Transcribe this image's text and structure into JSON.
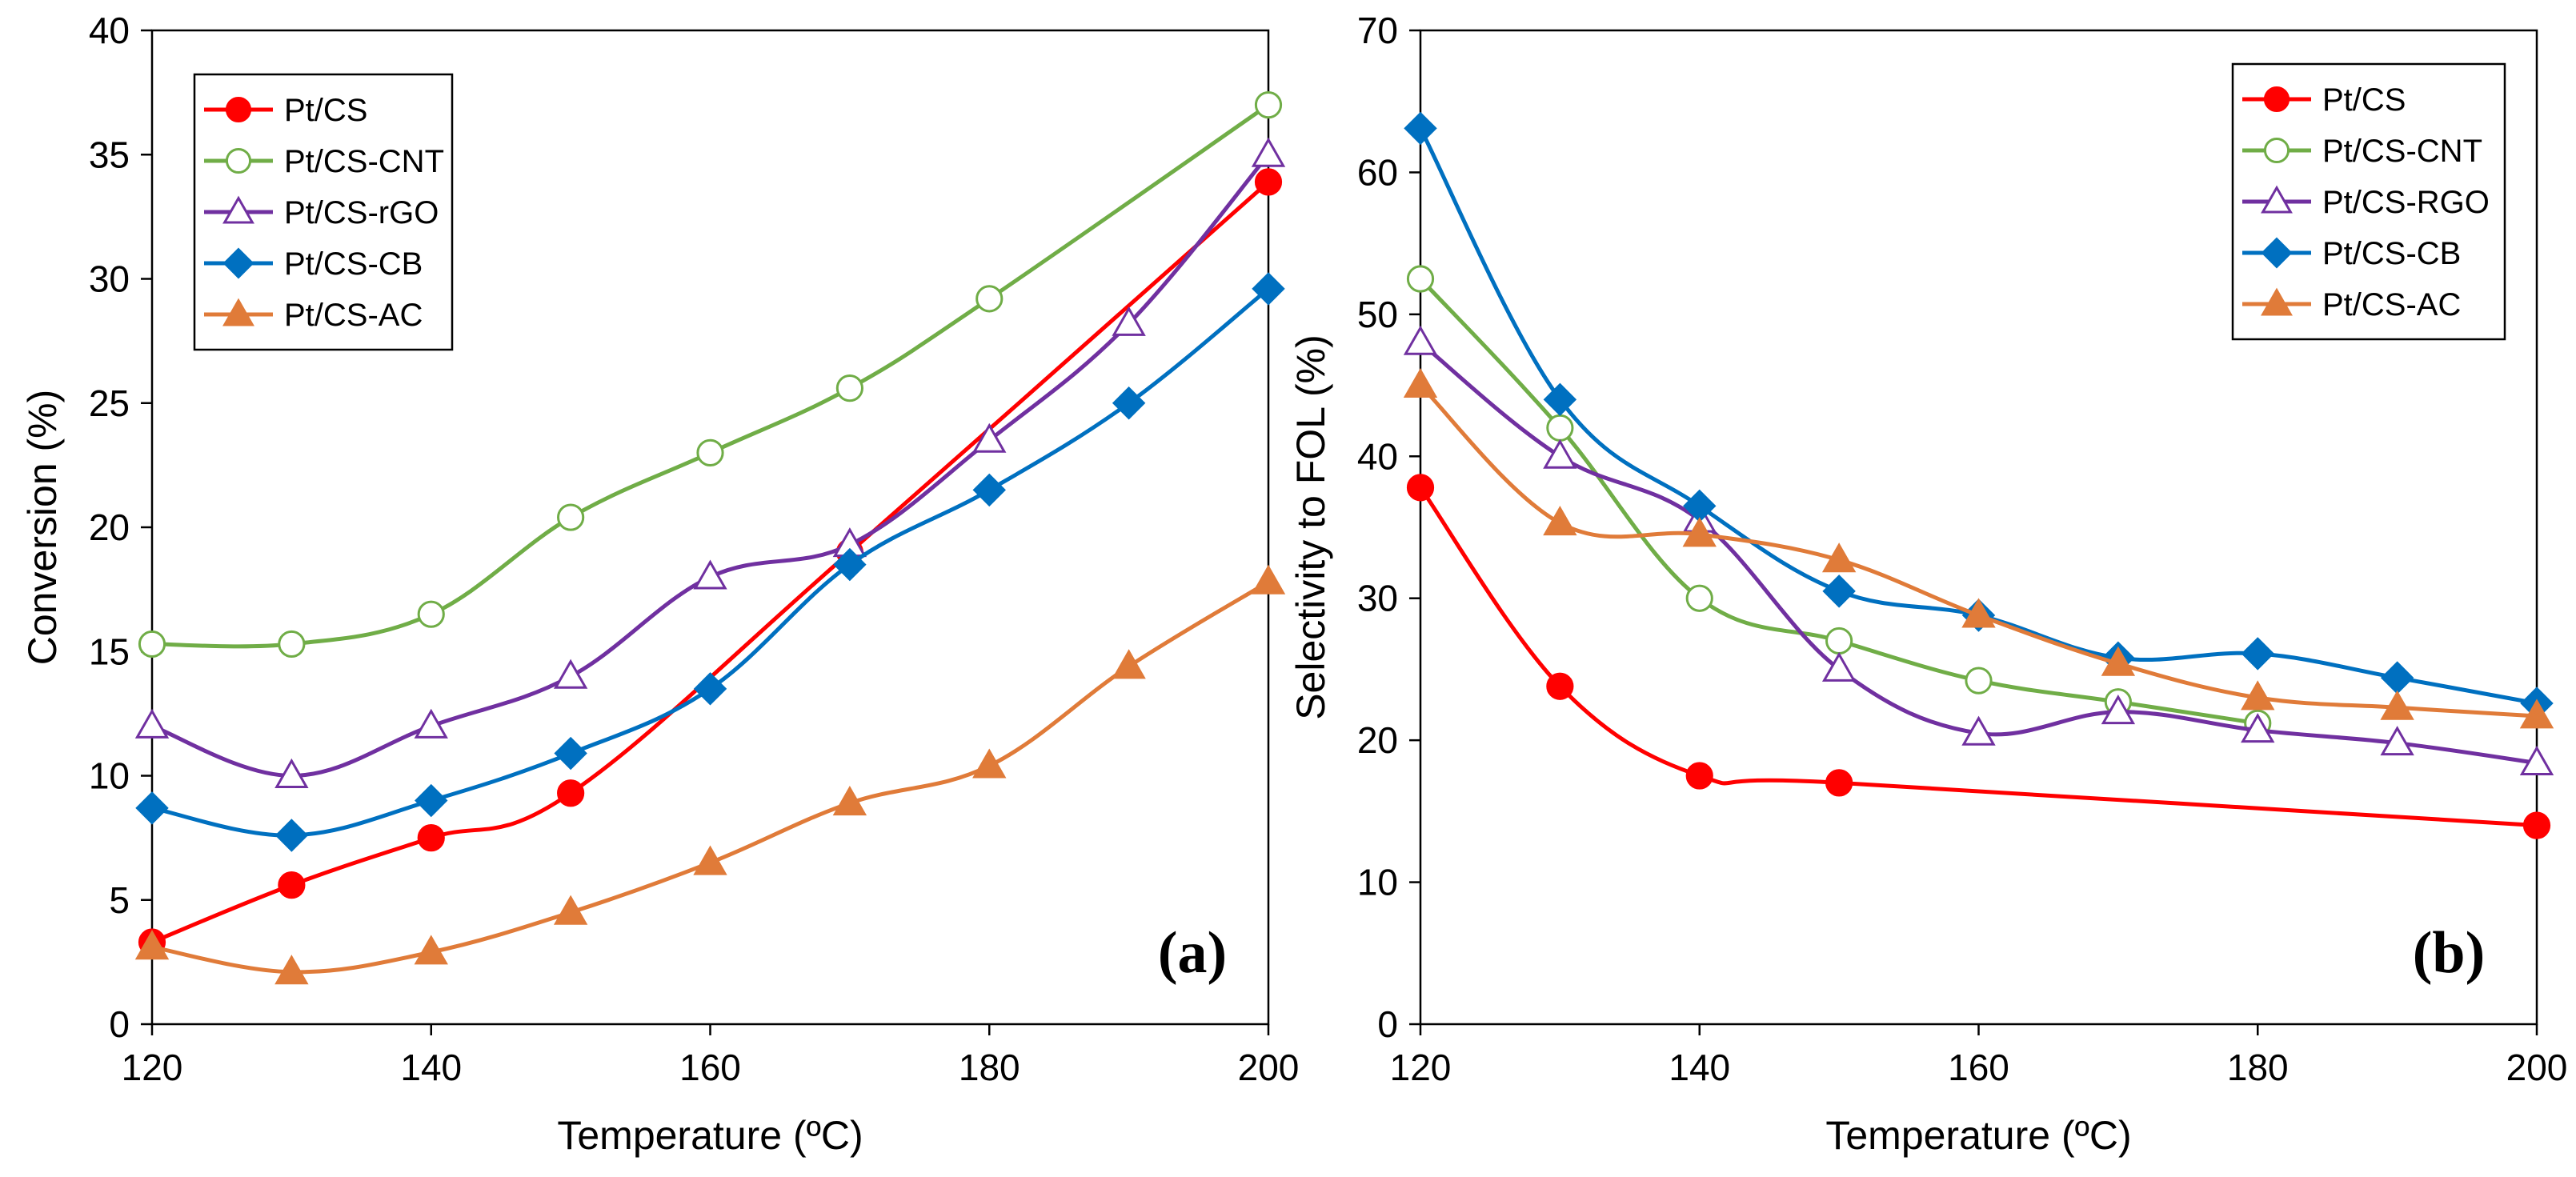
{
  "chart_data": [
    {
      "type": "line",
      "panel_label": "(a)",
      "xlabel": "Temperature (ºC)",
      "ylabel": "Conversion (%)",
      "xlim": [
        120,
        200
      ],
      "ylim": [
        0,
        40
      ],
      "xticks": [
        120,
        140,
        160,
        180,
        200
      ],
      "yticks": [
        0,
        5,
        10,
        15,
        20,
        25,
        30,
        35,
        40
      ],
      "grid": false,
      "legend_position": "top-left",
      "series": [
        {
          "name": "Pt/CS",
          "color": "#ff0000",
          "marker": "circle",
          "filled": true,
          "x": [
            120,
            130,
            140,
            150,
            170,
            200
          ],
          "y": [
            3.3,
            5.6,
            7.5,
            9.3,
            19.0,
            33.9
          ]
        },
        {
          "name": "Pt/CS-CNT",
          "color": "#70ad47",
          "marker": "circle",
          "filled": false,
          "x": [
            120,
            130,
            140,
            150,
            160,
            170,
            180,
            200
          ],
          "y": [
            15.3,
            15.3,
            16.5,
            20.4,
            23.0,
            25.6,
            29.2,
            37.0
          ]
        },
        {
          "name": "Pt/CS-rGO",
          "color": "#7030a0",
          "marker": "triangle",
          "filled": false,
          "x": [
            120,
            130,
            140,
            150,
            160,
            170,
            180,
            190,
            200
          ],
          "y": [
            12.0,
            10.0,
            12.0,
            14.0,
            18.0,
            19.3,
            23.5,
            28.2,
            35.0
          ]
        },
        {
          "name": "Pt/CS-CB",
          "color": "#0070c0",
          "marker": "diamond",
          "filled": true,
          "x": [
            120,
            130,
            140,
            150,
            160,
            170,
            180,
            190,
            200
          ],
          "y": [
            8.7,
            7.6,
            9.0,
            10.9,
            13.5,
            18.5,
            21.5,
            25.0,
            29.6
          ]
        },
        {
          "name": "Pt/CS-AC",
          "color": "#e07b39",
          "marker": "triangle",
          "filled": true,
          "x": [
            120,
            130,
            140,
            150,
            160,
            170,
            180,
            190,
            200
          ],
          "y": [
            3.1,
            2.1,
            2.9,
            4.5,
            6.5,
            8.9,
            10.4,
            14.4,
            17.8
          ]
        }
      ]
    },
    {
      "type": "line",
      "panel_label": "(b)",
      "xlabel": "Temperature (ºC)",
      "ylabel": "Selectivity to FOL (%)",
      "xlim": [
        120,
        200
      ],
      "ylim": [
        0,
        70
      ],
      "xticks": [
        120,
        140,
        160,
        180,
        200
      ],
      "yticks": [
        0,
        10,
        20,
        30,
        40,
        50,
        60,
        70
      ],
      "grid": false,
      "legend_position": "top-right",
      "series": [
        {
          "name": "Pt/CS",
          "color": "#ff0000",
          "marker": "circle",
          "filled": true,
          "x": [
            120,
            130,
            140,
            150,
            200
          ],
          "y": [
            37.8,
            23.8,
            17.5,
            17.0,
            14.0
          ]
        },
        {
          "name": "Pt/CS-CNT",
          "color": "#70ad47",
          "marker": "circle",
          "filled": false,
          "x": [
            120,
            130,
            140,
            150,
            160,
            170,
            180
          ],
          "y": [
            52.5,
            42.0,
            30.0,
            27.0,
            24.2,
            22.7,
            21.2
          ]
        },
        {
          "name": "Pt/CS-RGO",
          "color": "#7030a0",
          "marker": "triangle",
          "filled": false,
          "x": [
            120,
            130,
            140,
            150,
            160,
            170,
            180,
            190,
            200
          ],
          "y": [
            48.0,
            40.0,
            35.5,
            25.0,
            20.5,
            22.0,
            20.7,
            19.8,
            18.4
          ]
        },
        {
          "name": "Pt/CS-CB",
          "color": "#0070c0",
          "marker": "diamond",
          "filled": true,
          "x": [
            120,
            130,
            140,
            150,
            160,
            170,
            180,
            190,
            200
          ],
          "y": [
            63.1,
            44.0,
            36.5,
            30.5,
            28.8,
            25.8,
            26.1,
            24.4,
            22.6
          ]
        },
        {
          "name": "Pt/CS-AC",
          "color": "#e07b39",
          "marker": "triangle",
          "filled": true,
          "x": [
            120,
            130,
            140,
            150,
            160,
            170,
            180,
            190,
            200
          ],
          "y": [
            45.0,
            35.3,
            34.5,
            32.7,
            28.8,
            25.4,
            23.0,
            22.3,
            21.7
          ]
        }
      ]
    }
  ]
}
